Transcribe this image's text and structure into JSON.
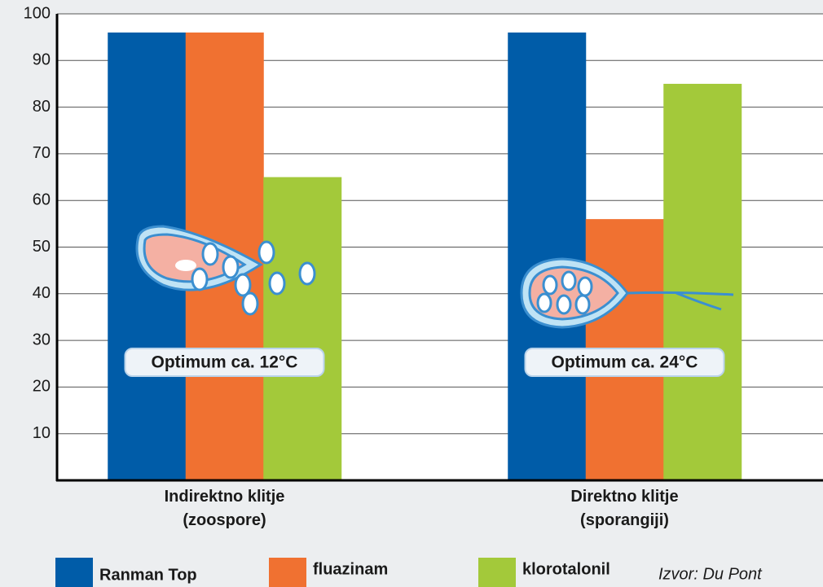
{
  "chart_data": {
    "type": "bar",
    "categories": [
      "Indirektno klitje\n(zoospore)",
      "Direktno klitje\n(sporangiji)"
    ],
    "series": [
      {
        "name": "Ranman Top",
        "color": "#005ca8",
        "values": [
          96,
          96
        ]
      },
      {
        "name": "fluazinam",
        "color": "#f07131",
        "values": [
          96,
          56
        ]
      },
      {
        "name": "klorotalonil",
        "color": "#a3c93a",
        "values": [
          65,
          85
        ]
      }
    ],
    "ylim": [
      0,
      100
    ],
    "yticks": [
      10,
      20,
      30,
      40,
      50,
      60,
      70,
      80,
      90,
      100
    ],
    "grid": true,
    "annotations": [
      "Optimum ca. 12°C",
      "Optimum ca. 24°C"
    ],
    "source": "Izvor: Du Pont"
  }
}
